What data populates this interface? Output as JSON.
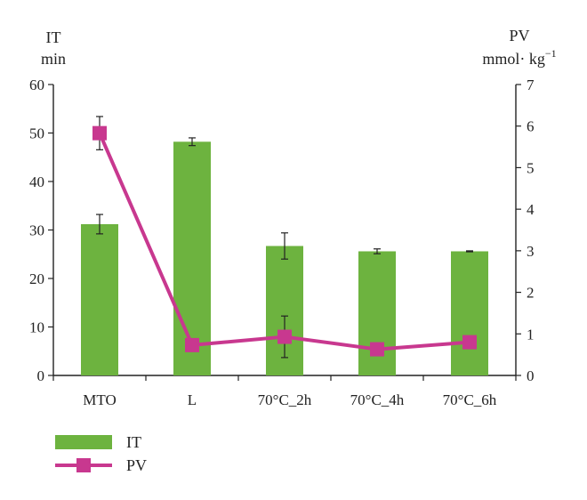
{
  "chart_data": {
    "type": "bar",
    "categories": [
      "MTO",
      "L",
      "70°C_2h",
      "70°C_4h",
      "70°C_6h"
    ],
    "left_axis": {
      "title_line1": "IT",
      "title_line2": "min",
      "ylim": [
        0,
        60
      ],
      "ticks": [
        0,
        10,
        20,
        30,
        40,
        50,
        60
      ]
    },
    "right_axis": {
      "title_line1": "PV",
      "title_line2": "mmol· kg",
      "title_sup": "−1",
      "ylim": [
        0,
        7
      ],
      "ticks": [
        0,
        1,
        2,
        3,
        4,
        5,
        6,
        7
      ]
    },
    "series": [
      {
        "name": "IT",
        "kind": "bar",
        "axis": "left",
        "color": "#6db33f",
        "values": [
          31.2,
          48.2,
          26.7,
          25.6,
          25.6
        ],
        "errors": [
          2.0,
          0.8,
          2.7,
          0.5,
          0.1
        ]
      },
      {
        "name": "PV",
        "kind": "line",
        "axis": "right",
        "color": "#c8388f",
        "values": [
          5.83,
          0.73,
          0.93,
          0.63,
          0.8
        ],
        "errors": [
          0.4,
          0.0,
          0.5,
          0.0,
          0.15
        ]
      }
    ],
    "legend": {
      "placement": "bottom-left",
      "items": [
        "IT",
        "PV"
      ]
    }
  }
}
